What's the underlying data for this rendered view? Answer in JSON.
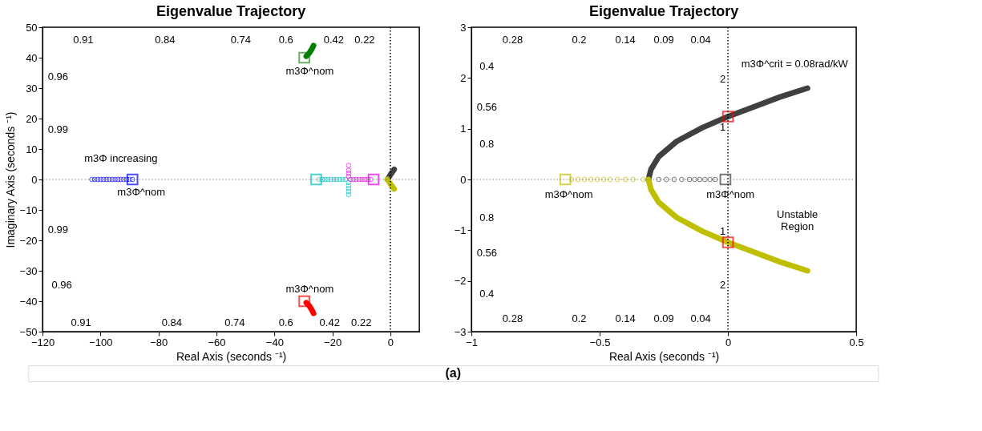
{
  "chart_data": [
    {
      "type": "scatter",
      "title": "Eigenvalue Trajectory",
      "xlabel": "Real Axis (seconds ⁻¹)",
      "ylabel": "Imaginary Axis (seconds ⁻¹)",
      "xlim": [
        -120,
        10
      ],
      "ylim": [
        -50,
        50
      ],
      "xticks": [
        -120,
        -100,
        -80,
        -60,
        -40,
        -20,
        0
      ],
      "yticks": [
        -50,
        -40,
        -30,
        -20,
        -10,
        0,
        10,
        20,
        30,
        40,
        50
      ],
      "grid": false,
      "marker": "circle",
      "series": [
        {
          "color": "#0000ff",
          "x": [
            -103,
            -102,
            -101,
            -100,
            -99,
            -98,
            -97,
            -96,
            -95,
            -94,
            -93,
            -92,
            -91,
            -90,
            -89
          ],
          "values": [
            0,
            0,
            0,
            0,
            0,
            0,
            0,
            0,
            0,
            0,
            0,
            0,
            0,
            0,
            0
          ]
        },
        {
          "color": "#0000ff",
          "marker": "square",
          "x": [
            -89
          ],
          "values": [
            0
          ]
        },
        {
          "color": "#2e8b2e",
          "marker": "square",
          "x": [
            -29.7
          ],
          "values": [
            40
          ]
        },
        {
          "type": "line",
          "marker": "none",
          "line_style": "solid",
          "color": "#008000",
          "x": [
            -29,
            -28,
            -27,
            -26.5
          ],
          "values": [
            40.5,
            41.5,
            43,
            44
          ]
        },
        {
          "color": "#ff0000",
          "marker": "square",
          "x": [
            -29.7
          ],
          "values": [
            -40
          ]
        },
        {
          "type": "line",
          "marker": "none",
          "line_style": "solid",
          "color": "#ff0000",
          "x": [
            -29,
            -28,
            -27,
            -26.5
          ],
          "values": [
            -40.5,
            -41.5,
            -43,
            -44
          ]
        },
        {
          "color": "#00bfbf",
          "marker": "circle",
          "x": [
            -24.5,
            -23.5,
            -22.5,
            -21.5,
            -20.5,
            -19.5,
            -18.5,
            -17.5,
            -16.5,
            -15.5,
            -14.4,
            -14.4,
            -14.4,
            -14.4,
            -14.4
          ],
          "values": [
            0,
            0,
            0,
            0,
            0,
            0,
            0,
            0,
            0,
            0,
            -1,
            -2,
            -3,
            -4,
            -5
          ]
        },
        {
          "color": "#00bfbf",
          "marker": "square",
          "x": [
            -25.6
          ],
          "values": [
            0
          ]
        },
        {
          "color": "#e600e6",
          "marker": "circle",
          "x": [
            -6.8,
            -7.8,
            -8.8,
            -9.8,
            -10.8,
            -11.8,
            -12.8,
            -13.8,
            -14.4,
            -14.4,
            -14.4,
            -14.4
          ],
          "values": [
            0,
            0,
            0,
            0,
            0,
            0,
            0,
            0,
            1,
            2,
            3,
            4.6
          ]
        },
        {
          "color": "#e600e6",
          "marker": "square",
          "x": [
            -5.8
          ],
          "values": [
            0
          ]
        },
        {
          "type": "line",
          "marker": "none",
          "line_style": "solid",
          "color": "#404040",
          "x": [
            -1,
            0,
            1.3
          ],
          "values": [
            0,
            1.5,
            3.3
          ]
        },
        {
          "type": "line",
          "marker": "none",
          "line_style": "solid",
          "color": "#bfbf00",
          "x": [
            -1,
            0,
            1.3
          ],
          "values": [
            0,
            -1.5,
            -3.1
          ]
        }
      ],
      "ref_lines": [
        {
          "axis": "x",
          "value": 0,
          "color": "#000000",
          "line_style": "dotted"
        },
        {
          "axis": "y",
          "value": 0,
          "color": "#888888",
          "line_style": "dotted"
        }
      ],
      "annotations": [
        "0.91",
        "0.84",
        "0.74",
        "0.6",
        "0.42",
        "0.22",
        "0.96",
        "0.99",
        "0.99",
        "0.96",
        "0.91",
        "0.84",
        "0.74",
        "0.6",
        "0.42",
        "0.22",
        "m3Φ increasing",
        "m3Φ^nom",
        "m3Φ^nom",
        "m3Φ^nom",
        "(a)"
      ]
    },
    {
      "type": "scatter",
      "title": "Eigenvalue Trajectory",
      "xlabel": "Real Axis (seconds ⁻¹)",
      "xlim": [
        -1,
        0.5
      ],
      "ylim": [
        -3,
        3
      ],
      "xticks": [
        -1,
        -0.5,
        0,
        0.5
      ],
      "yticks": [
        -3,
        -2,
        -1,
        0,
        1,
        2,
        3
      ],
      "grid": false,
      "marker": "circle",
      "series": [
        {
          "color": "#bfbf00",
          "marker": "circle",
          "x": [
            -0.61,
            -0.585,
            -0.56,
            -0.535,
            -0.51,
            -0.485,
            -0.46,
            -0.43,
            -0.4,
            -0.37,
            -0.33
          ],
          "values": [
            0,
            0,
            0,
            0,
            0,
            0,
            0,
            0,
            0,
            0,
            0
          ]
        },
        {
          "color": "#bfbf00",
          "marker": "square",
          "x": [
            -0.634
          ],
          "values": [
            0
          ]
        },
        {
          "color": "#404040",
          "marker": "circle",
          "x": [
            -0.27,
            -0.24,
            -0.21,
            -0.18,
            -0.15,
            -0.13,
            -0.11,
            -0.09,
            -0.07,
            -0.05
          ],
          "values": [
            0,
            0,
            0,
            0,
            0,
            0,
            0,
            0,
            0,
            0
          ]
        },
        {
          "color": "#404040",
          "marker": "square",
          "x": [
            -0.01
          ],
          "values": [
            0
          ]
        },
        {
          "type": "line",
          "marker": "none",
          "line_style": "solid",
          "color": "#404040",
          "x": [
            -0.31,
            -0.3,
            -0.27,
            -0.2,
            -0.1,
            0,
            0.1,
            0.2,
            0.31
          ],
          "values": [
            0,
            0.2,
            0.45,
            0.75,
            1.02,
            1.24,
            1.43,
            1.62,
            1.8
          ]
        },
        {
          "type": "line",
          "marker": "none",
          "line_style": "solid",
          "color": "#bfbf00",
          "x": [
            -0.31,
            -0.3,
            -0.27,
            -0.2,
            -0.1,
            0,
            0.1,
            0.2,
            0.31
          ],
          "values": [
            0,
            -0.2,
            -0.45,
            -0.75,
            -1.02,
            -1.24,
            -1.43,
            -1.62,
            -1.8
          ]
        },
        {
          "color": "#ff0000",
          "marker": "square",
          "x": [
            0,
            0
          ],
          "values": [
            1.24,
            -1.24
          ]
        }
      ],
      "ref_lines": [
        {
          "axis": "x",
          "value": 0,
          "color": "#000000",
          "line_style": "dotted"
        },
        {
          "axis": "y",
          "value": 0,
          "color": "#888888",
          "line_style": "dotted"
        }
      ],
      "annotations": [
        "0.28",
        "0.2",
        "0.14",
        "0.09",
        "0.04",
        "0.4",
        "0.56",
        "0.8",
        "0.8",
        "0.56",
        "0.4",
        "0.28",
        "0.2",
        "0.14",
        "0.09",
        "0.04",
        "2",
        "1",
        "1",
        "2",
        "m3Φ^crit = 0.08rad/kW",
        "m3Φ^nom",
        "m3Φ^nom",
        "Unstable\nRegion"
      ]
    }
  ]
}
